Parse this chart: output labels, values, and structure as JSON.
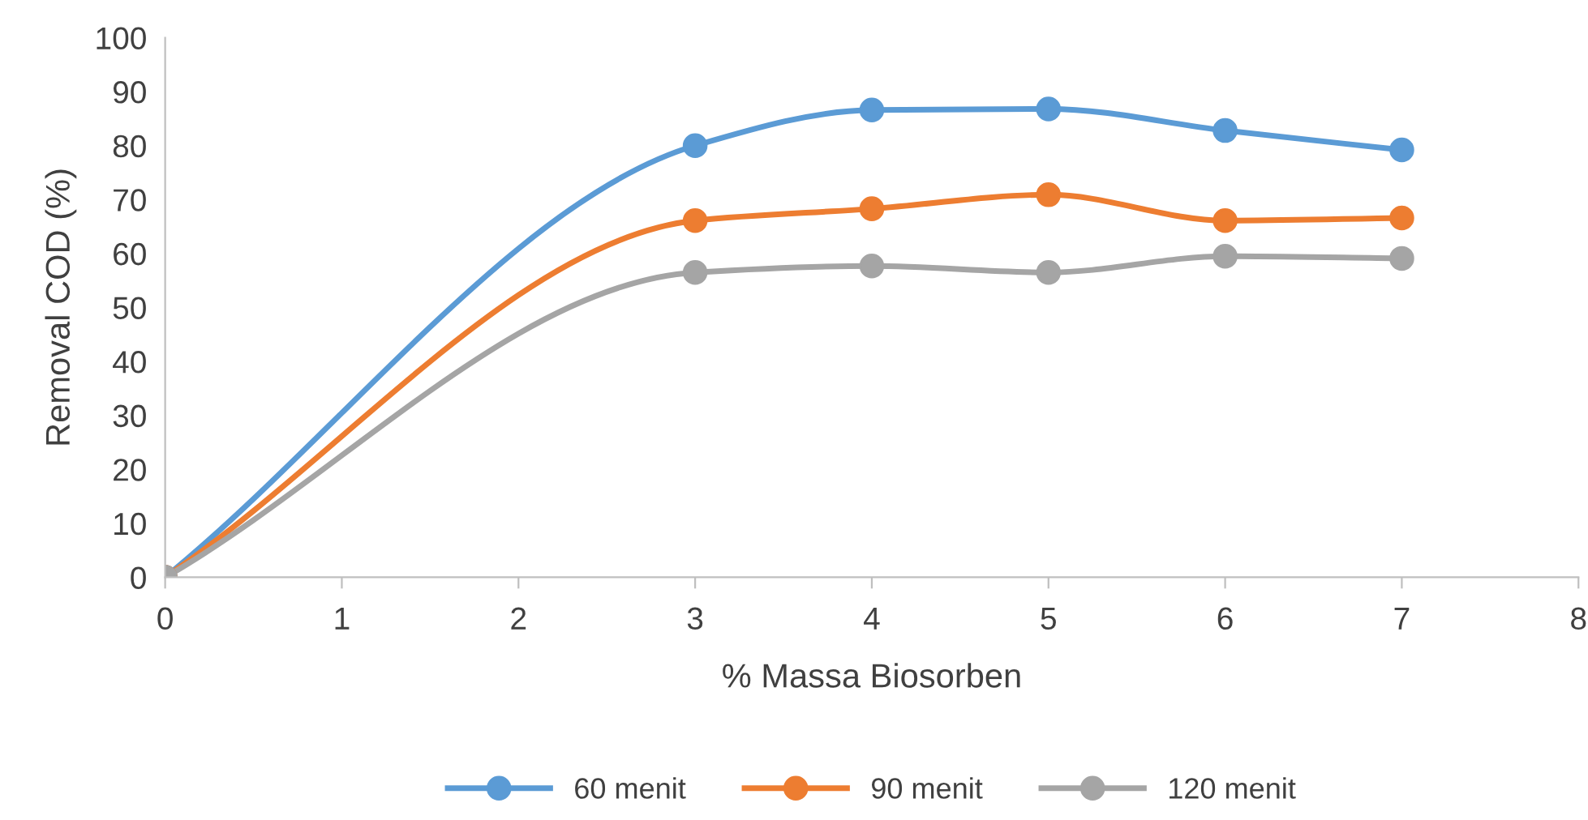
{
  "chart_data": {
    "type": "line",
    "xlabel": "% Massa Biosorben",
    "ylabel": "Removal COD (%)",
    "x": [
      0,
      3,
      4,
      5,
      6,
      7
    ],
    "series": [
      {
        "name": "60 menit",
        "color": "#5b9bd5",
        "values": [
          0,
          80,
          86.6,
          86.8,
          82.8,
          79.2
        ]
      },
      {
        "name": "90 menit",
        "color": "#ed7d31",
        "values": [
          0,
          66.1,
          68.3,
          70.9,
          66.1,
          66.6
        ]
      },
      {
        "name": "120 menit",
        "color": "#a5a5a5",
        "values": [
          0,
          56.5,
          57.7,
          56.5,
          59.5,
          59.1
        ]
      }
    ],
    "xlim": [
      0,
      8
    ],
    "xticks": [
      0,
      1,
      2,
      3,
      4,
      5,
      6,
      7,
      8
    ],
    "ylim": [
      0,
      100
    ],
    "yticks": [
      0,
      10,
      20,
      30,
      40,
      50,
      60,
      70,
      80,
      90,
      100
    ],
    "grid": false,
    "legend": "bottom",
    "marker": "circle",
    "line_style": "solid"
  }
}
